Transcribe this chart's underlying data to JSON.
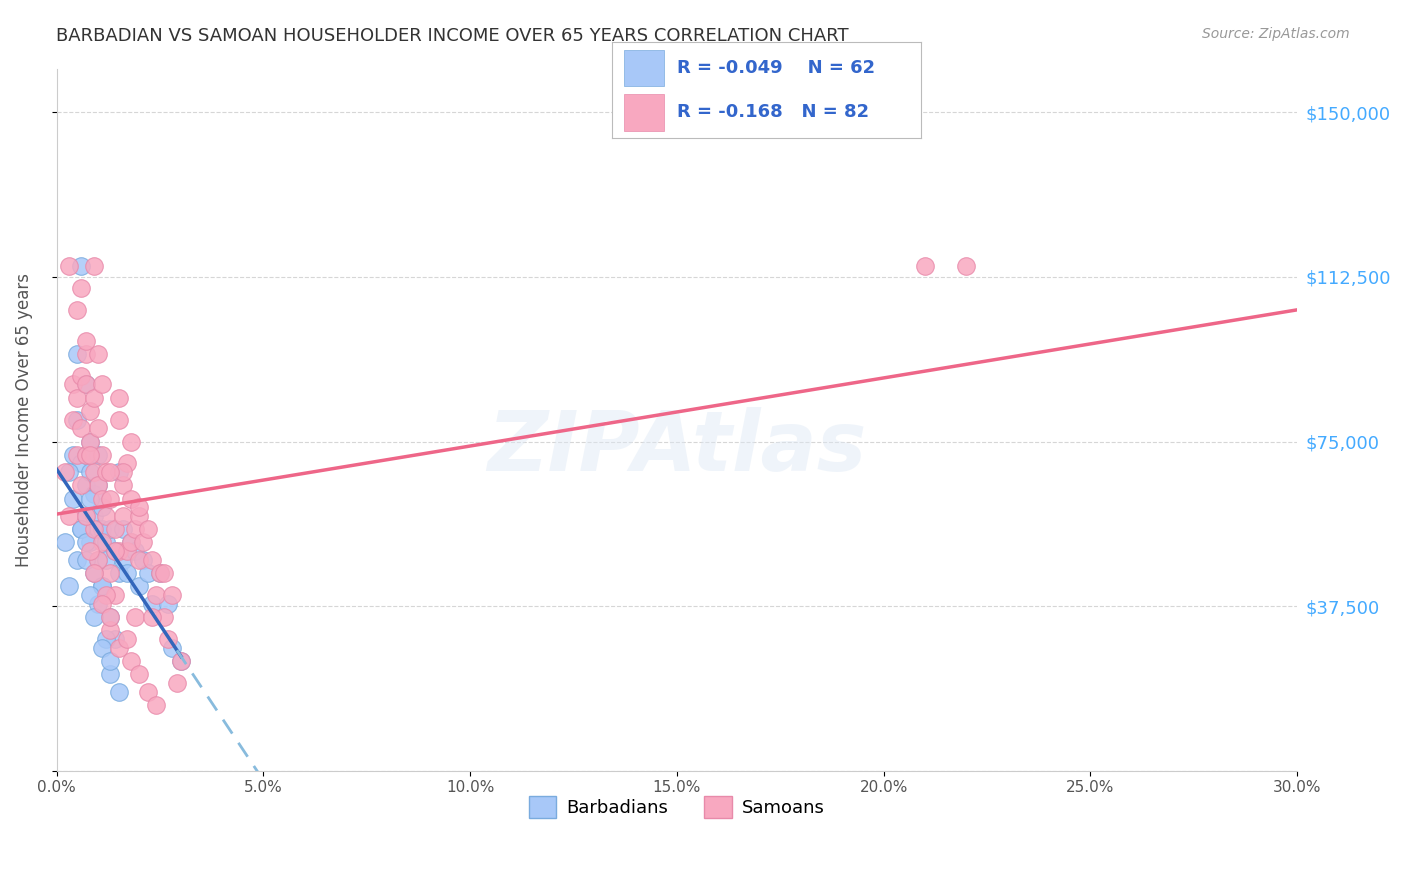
{
  "title": "BARBADIAN VS SAMOAN HOUSEHOLDER INCOME OVER 65 YEARS CORRELATION CHART",
  "source": "Source: ZipAtlas.com",
  "ylabel": "Householder Income Over 65 years",
  "legend_entries": [
    {
      "label": "Barbadians",
      "R": -0.049,
      "N": 62,
      "dot_color": "#a8c8f8",
      "edge_color": "#7aabde"
    },
    {
      "label": "Samoans",
      "R": -0.168,
      "N": 82,
      "dot_color": "#f8a8c0",
      "edge_color": "#e88aaa"
    }
  ],
  "ytick_values": [
    0,
    37500,
    75000,
    112500,
    150000
  ],
  "ytick_labels": [
    "",
    "$37,500",
    "$75,000",
    "$112,500",
    "$150,000"
  ],
  "xtick_values": [
    0.0,
    0.05,
    0.1,
    0.15,
    0.2,
    0.25,
    0.3
  ],
  "xtick_labels": [
    "0.0%",
    "5.0%",
    "10.0%",
    "15.0%",
    "20.0%",
    "25.0%",
    "30.0%"
  ],
  "xlim": [
    0.0,
    0.3
  ],
  "ylim": [
    0,
    160000
  ],
  "background_color": "#ffffff",
  "grid_color": "#cccccc",
  "title_color": "#333333",
  "source_color": "#999999",
  "yaxis_right_color": "#44aaff",
  "trend_barbadian_solid_color": "#3366bb",
  "trend_barbadian_dash_color": "#88bbdd",
  "trend_samoan_color": "#ee6688",
  "barbadian_x": [
    0.002,
    0.003,
    0.004,
    0.004,
    0.005,
    0.005,
    0.005,
    0.006,
    0.006,
    0.006,
    0.007,
    0.007,
    0.007,
    0.007,
    0.008,
    0.008,
    0.008,
    0.009,
    0.009,
    0.01,
    0.01,
    0.01,
    0.01,
    0.011,
    0.011,
    0.011,
    0.012,
    0.012,
    0.013,
    0.013,
    0.014,
    0.014,
    0.015,
    0.015,
    0.016,
    0.016,
    0.017,
    0.018,
    0.019,
    0.02,
    0.021,
    0.022,
    0.023,
    0.025,
    0.027,
    0.028,
    0.03,
    0.008,
    0.009,
    0.01,
    0.011,
    0.012,
    0.013,
    0.006,
    0.007,
    0.008,
    0.009,
    0.011,
    0.013,
    0.015,
    0.003,
    0.007
  ],
  "barbadian_y": [
    52000,
    42000,
    62000,
    72000,
    48000,
    80000,
    95000,
    55000,
    70000,
    115000,
    65000,
    72000,
    58000,
    88000,
    68000,
    52000,
    75000,
    63000,
    58000,
    48000,
    65000,
    72000,
    55000,
    55000,
    60000,
    42000,
    52000,
    48000,
    55000,
    35000,
    50000,
    30000,
    45000,
    68000,
    55000,
    48000,
    45000,
    52000,
    50000,
    42000,
    48000,
    45000,
    38000,
    45000,
    38000,
    28000,
    25000,
    62000,
    45000,
    38000,
    42000,
    30000,
    22000,
    55000,
    48000,
    40000,
    35000,
    28000,
    25000,
    18000,
    68000,
    52000
  ],
  "samoan_x": [
    0.002,
    0.003,
    0.003,
    0.004,
    0.004,
    0.005,
    0.005,
    0.005,
    0.006,
    0.006,
    0.006,
    0.007,
    0.007,
    0.007,
    0.007,
    0.008,
    0.008,
    0.009,
    0.009,
    0.009,
    0.01,
    0.01,
    0.01,
    0.011,
    0.011,
    0.011,
    0.012,
    0.012,
    0.013,
    0.013,
    0.014,
    0.014,
    0.015,
    0.015,
    0.015,
    0.016,
    0.016,
    0.017,
    0.017,
    0.018,
    0.018,
    0.019,
    0.019,
    0.02,
    0.02,
    0.021,
    0.022,
    0.023,
    0.024,
    0.025,
    0.026,
    0.027,
    0.028,
    0.029,
    0.03,
    0.008,
    0.009,
    0.01,
    0.011,
    0.012,
    0.013,
    0.006,
    0.007,
    0.008,
    0.009,
    0.011,
    0.013,
    0.015,
    0.016,
    0.017,
    0.018,
    0.02,
    0.022,
    0.024,
    0.026,
    0.02,
    0.22,
    0.21,
    0.014,
    0.013,
    0.018,
    0.023
  ],
  "samoan_y": [
    68000,
    58000,
    115000,
    80000,
    88000,
    72000,
    85000,
    105000,
    90000,
    78000,
    110000,
    95000,
    88000,
    72000,
    98000,
    82000,
    75000,
    68000,
    85000,
    115000,
    78000,
    65000,
    95000,
    72000,
    62000,
    88000,
    58000,
    68000,
    62000,
    45000,
    55000,
    40000,
    50000,
    80000,
    85000,
    65000,
    58000,
    70000,
    50000,
    62000,
    52000,
    55000,
    35000,
    48000,
    58000,
    52000,
    55000,
    48000,
    40000,
    45000,
    35000,
    30000,
    40000,
    20000,
    25000,
    72000,
    55000,
    48000,
    52000,
    40000,
    32000,
    65000,
    58000,
    50000,
    45000,
    38000,
    35000,
    28000,
    68000,
    30000,
    25000,
    22000,
    18000,
    15000,
    45000,
    60000,
    115000,
    115000,
    50000,
    68000,
    75000,
    35000
  ]
}
